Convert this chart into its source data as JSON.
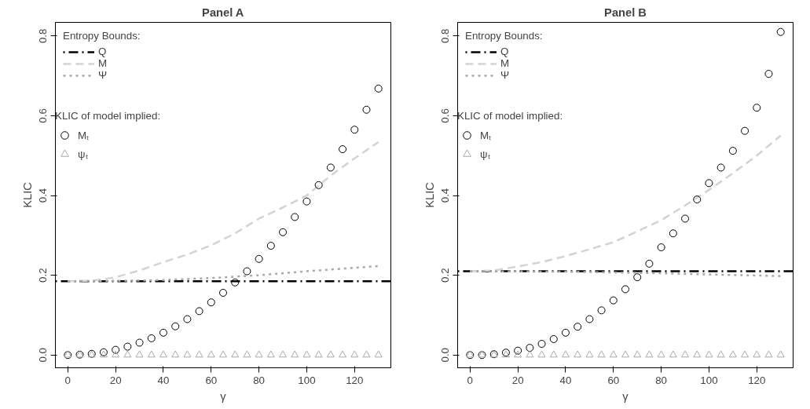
{
  "chart_data": [
    {
      "type": "line",
      "title": "Panel A",
      "xlabel": "γ",
      "ylabel": "KLIC",
      "legend_title": "Entropy Bounds:",
      "annotations": [
        "KLIC of model implied:"
      ],
      "legend": "top left",
      "grid": false,
      "xlim": [
        -5.2,
        135.2
      ],
      "xticks": [
        0,
        20,
        40,
        60,
        80,
        100,
        120
      ],
      "ylim": [
        -0.032,
        0.834
      ],
      "yticks": [
        {
          "value": 0,
          "label": "0.0"
        },
        {
          "value": 0.2,
          "label": "0.2"
        },
        {
          "value": 0.4,
          "label": "0.4"
        },
        {
          "value": 0.6,
          "label": "0.6"
        },
        {
          "value": 0.8,
          "label": "0.8"
        }
      ],
      "series": [
        {
          "name": "Q",
          "line_style": "dotdash",
          "color": "#000000",
          "x": [
            -5.2,
            135.2
          ],
          "values": [
            0.185,
            0.185
          ]
        },
        {
          "name": "M",
          "line_style": "dashed",
          "color": "#d3d3d3",
          "x": [
            0,
            10,
            20,
            30,
            40,
            50,
            60,
            70,
            80,
            90,
            100,
            110,
            120,
            130
          ],
          "values": [
            0.185,
            0.186,
            0.195,
            0.212,
            0.233,
            0.252,
            0.275,
            0.305,
            0.342,
            0.37,
            0.4,
            0.45,
            0.493,
            0.534
          ]
        },
        {
          "name": "Ψ",
          "line_style": "dotted",
          "color": "#a9a9a9",
          "x": [
            0,
            20,
            40,
            60,
            80,
            100,
            130
          ],
          "values": [
            0.185,
            0.186,
            0.188,
            0.193,
            0.2,
            0.21,
            0.223
          ]
        },
        {
          "name": "Mₜ",
          "type": "scatter",
          "marker": "circle",
          "color": "#000000",
          "x": [
            0,
            5,
            10,
            15,
            20,
            25,
            30,
            35,
            40,
            45,
            50,
            55,
            60,
            65,
            70,
            75,
            80,
            85,
            90,
            95,
            100,
            105,
            110,
            115,
            120,
            125,
            130
          ],
          "values": [
            0,
            0.001,
            0.003,
            0.007,
            0.013,
            0.021,
            0.031,
            0.042,
            0.056,
            0.072,
            0.09,
            0.11,
            0.132,
            0.156,
            0.182,
            0.21,
            0.241,
            0.274,
            0.308,
            0.346,
            0.385,
            0.426,
            0.47,
            0.516,
            0.565,
            0.615,
            0.668
          ]
        },
        {
          "name": "ψₜ",
          "type": "scatter",
          "marker": "triangle",
          "color": "#a9a9a9",
          "x": [
            0,
            5,
            10,
            15,
            20,
            25,
            30,
            35,
            40,
            45,
            50,
            55,
            60,
            65,
            70,
            75,
            80,
            85,
            90,
            95,
            100,
            105,
            110,
            115,
            120,
            125,
            130
          ],
          "values": [
            0,
            0,
            0,
            0,
            0,
            0,
            0,
            0,
            0,
            0,
            0,
            0,
            0,
            0,
            0,
            0,
            0,
            0,
            0,
            0,
            0,
            0,
            0,
            0,
            0,
            0,
            0
          ]
        }
      ]
    },
    {
      "type": "line",
      "title": "Panel B",
      "xlabel": "γ",
      "ylabel": "KLIC",
      "legend_title": "Entropy Bounds:",
      "annotations": [
        "KLIC of model implied:"
      ],
      "legend": "top left",
      "grid": false,
      "xlim": [
        -5.2,
        135.2
      ],
      "xticks": [
        0,
        20,
        40,
        60,
        80,
        100,
        120
      ],
      "ylim": [
        -0.032,
        0.834
      ],
      "yticks": [
        {
          "value": 0,
          "label": "0.0"
        },
        {
          "value": 0.2,
          "label": "0.2"
        },
        {
          "value": 0.4,
          "label": "0.4"
        },
        {
          "value": 0.6,
          "label": "0.6"
        },
        {
          "value": 0.8,
          "label": "0.8"
        }
      ],
      "series": [
        {
          "name": "Q",
          "line_style": "dotdash",
          "color": "#000000",
          "x": [
            -5.2,
            135.2
          ],
          "values": [
            0.21,
            0.21
          ]
        },
        {
          "name": "M",
          "line_style": "dashed",
          "color": "#d3d3d3",
          "x": [
            0,
            10,
            20,
            30,
            40,
            50,
            60,
            70,
            80,
            90,
            100,
            110,
            120,
            130
          ],
          "values": [
            0.21,
            0.212,
            0.222,
            0.233,
            0.248,
            0.265,
            0.283,
            0.31,
            0.338,
            0.375,
            0.414,
            0.456,
            0.5,
            0.55
          ]
        },
        {
          "name": "Ψ",
          "line_style": "dotted",
          "color": "#a9a9a9",
          "x": [
            0,
            40,
            60,
            80,
            100,
            130
          ],
          "values": [
            0.21,
            0.209,
            0.207,
            0.205,
            0.202,
            0.198
          ]
        },
        {
          "name": "Mₜ",
          "type": "scatter",
          "marker": "circle",
          "color": "#000000",
          "x": [
            0,
            5,
            10,
            15,
            20,
            25,
            30,
            35,
            40,
            45,
            50,
            55,
            60,
            65,
            70,
            75,
            80,
            85,
            90,
            95,
            100,
            105,
            110,
            115,
            120,
            125,
            130
          ],
          "values": [
            0,
            0,
            0.002,
            0.006,
            0.011,
            0.018,
            0.028,
            0.04,
            0.056,
            0.071,
            0.09,
            0.112,
            0.137,
            0.165,
            0.195,
            0.229,
            0.27,
            0.305,
            0.342,
            0.39,
            0.431,
            0.47,
            0.512,
            0.562,
            0.62,
            0.705,
            0.81
          ]
        },
        {
          "name": "ψₜ",
          "type": "scatter",
          "marker": "triangle",
          "color": "#a9a9a9",
          "x": [
            0,
            5,
            10,
            15,
            20,
            25,
            30,
            35,
            40,
            45,
            50,
            55,
            60,
            65,
            70,
            75,
            80,
            85,
            90,
            95,
            100,
            105,
            110,
            115,
            120,
            125,
            130
          ],
          "values": [
            0,
            0,
            0,
            0,
            0,
            0,
            0,
            0,
            0,
            0,
            0,
            0,
            0,
            0,
            0,
            0,
            0,
            0,
            0,
            0,
            0,
            0,
            0,
            0,
            0,
            0,
            0
          ]
        }
      ]
    }
  ]
}
